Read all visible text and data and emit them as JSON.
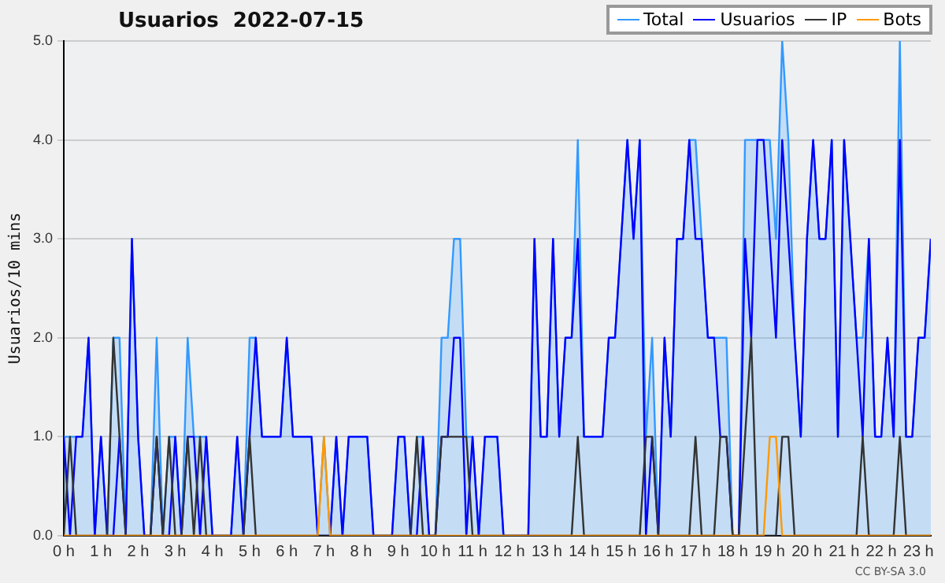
{
  "chart_data": {
    "type": "line",
    "title": "Usuarios  2022-07-15",
    "ylabel": "Usuarios/10 mins",
    "x": [
      "2022-07-15T00:00",
      "2022-07-15T00:10",
      "2022-07-15T00:20",
      "2022-07-15T00:30",
      "2022-07-15T00:40",
      "2022-07-15T00:50",
      "2022-07-15T01:00",
      "2022-07-15T01:10",
      "2022-07-15T01:20",
      "2022-07-15T01:30",
      "2022-07-15T01:40",
      "2022-07-15T01:50",
      "2022-07-15T02:00",
      "2022-07-15T02:10",
      "2022-07-15T02:20",
      "2022-07-15T02:30",
      "2022-07-15T02:40",
      "2022-07-15T02:50",
      "2022-07-15T03:00",
      "2022-07-15T03:10",
      "2022-07-15T03:20",
      "2022-07-15T03:30",
      "2022-07-15T03:40",
      "2022-07-15T03:50",
      "2022-07-15T04:00",
      "2022-07-15T04:10",
      "2022-07-15T04:20",
      "2022-07-15T04:30",
      "2022-07-15T04:40",
      "2022-07-15T04:50",
      "2022-07-15T05:00",
      "2022-07-15T05:10",
      "2022-07-15T05:20",
      "2022-07-15T05:30",
      "2022-07-15T05:40",
      "2022-07-15T05:50",
      "2022-07-15T06:00",
      "2022-07-15T06:10",
      "2022-07-15T06:20",
      "2022-07-15T06:30",
      "2022-07-15T06:40",
      "2022-07-15T06:50",
      "2022-07-15T07:00",
      "2022-07-15T07:10",
      "2022-07-15T07:20",
      "2022-07-15T07:30",
      "2022-07-15T07:40",
      "2022-07-15T07:50",
      "2022-07-15T08:00",
      "2022-07-15T08:10",
      "2022-07-15T08:20",
      "2022-07-15T08:30",
      "2022-07-15T08:40",
      "2022-07-15T08:50",
      "2022-07-15T09:00",
      "2022-07-15T09:10",
      "2022-07-15T09:20",
      "2022-07-15T09:30",
      "2022-07-15T09:40",
      "2022-07-15T09:50",
      "2022-07-15T10:00",
      "2022-07-15T10:10",
      "2022-07-15T10:20",
      "2022-07-15T10:30",
      "2022-07-15T10:40",
      "2022-07-15T10:50",
      "2022-07-15T11:00",
      "2022-07-15T11:10",
      "2022-07-15T11:20",
      "2022-07-15T11:30",
      "2022-07-15T11:40",
      "2022-07-15T11:50",
      "2022-07-15T12:00",
      "2022-07-15T12:10",
      "2022-07-15T12:20",
      "2022-07-15T12:30",
      "2022-07-15T12:40",
      "2022-07-15T12:50",
      "2022-07-15T13:00",
      "2022-07-15T13:10",
      "2022-07-15T13:20",
      "2022-07-15T13:30",
      "2022-07-15T13:40",
      "2022-07-15T13:50",
      "2022-07-15T14:00",
      "2022-07-15T14:10",
      "2022-07-15T14:20",
      "2022-07-15T14:30",
      "2022-07-15T14:40",
      "2022-07-15T14:50",
      "2022-07-15T15:00",
      "2022-07-15T15:10",
      "2022-07-15T15:20",
      "2022-07-15T15:30",
      "2022-07-15T15:40",
      "2022-07-15T15:50",
      "2022-07-15T16:00",
      "2022-07-15T16:10",
      "2022-07-15T16:20",
      "2022-07-15T16:30",
      "2022-07-15T16:40",
      "2022-07-15T16:50",
      "2022-07-15T17:00",
      "2022-07-15T17:10",
      "2022-07-15T17:20",
      "2022-07-15T17:30",
      "2022-07-15T17:40",
      "2022-07-15T17:50",
      "2022-07-15T18:00",
      "2022-07-15T18:10",
      "2022-07-15T18:20",
      "2022-07-15T18:30",
      "2022-07-15T18:40",
      "2022-07-15T18:50",
      "2022-07-15T19:00",
      "2022-07-15T19:10",
      "2022-07-15T19:20",
      "2022-07-15T19:30",
      "2022-07-15T19:40",
      "2022-07-15T19:50",
      "2022-07-15T20:00",
      "2022-07-15T20:10",
      "2022-07-15T20:20",
      "2022-07-15T20:30",
      "2022-07-15T20:40",
      "2022-07-15T20:50",
      "2022-07-15T21:00",
      "2022-07-15T21:10",
      "2022-07-15T21:20",
      "2022-07-15T21:30",
      "2022-07-15T21:40",
      "2022-07-15T21:50",
      "2022-07-15T22:00",
      "2022-07-15T22:10",
      "2022-07-15T22:20",
      "2022-07-15T22:30",
      "2022-07-15T22:40",
      "2022-07-15T22:50",
      "2022-07-15T23:00",
      "2022-07-15T23:10",
      "2022-07-15T23:20"
    ],
    "series": [
      {
        "name": "Total",
        "type": "area",
        "color": "#3399ff",
        "values": [
          1,
          1,
          1,
          1,
          2,
          0,
          1,
          0,
          2,
          2,
          0,
          3,
          1,
          0,
          0,
          2,
          0,
          1,
          1,
          0,
          2,
          1,
          1,
          1,
          0,
          0,
          0,
          0,
          1,
          0,
          2,
          2,
          1,
          1,
          1,
          1,
          2,
          1,
          1,
          1,
          1,
          0,
          1,
          0,
          1,
          0,
          1,
          1,
          1,
          1,
          0,
          0,
          0,
          0,
          1,
          1,
          0,
          1,
          1,
          0,
          0,
          2,
          2,
          3,
          3,
          1,
          1,
          0,
          1,
          1,
          1,
          0,
          0,
          0,
          0,
          0,
          3,
          1,
          1,
          3,
          1,
          2,
          2,
          4,
          1,
          1,
          1,
          1,
          2,
          2,
          3,
          4,
          3,
          4,
          1,
          2,
          0,
          2,
          1,
          3,
          3,
          4,
          4,
          3,
          2,
          2,
          2,
          2,
          0,
          0,
          4,
          4,
          4,
          4,
          4,
          3,
          5,
          4,
          2,
          1,
          3,
          4,
          3,
          3,
          4,
          1,
          4,
          3,
          2,
          2,
          3,
          1,
          1,
          2,
          1,
          5,
          1,
          1,
          2,
          2,
          3
        ]
      },
      {
        "name": "Usuarios",
        "type": "line",
        "color": "#0000ff",
        "values": [
          1,
          0,
          1,
          1,
          2,
          0,
          1,
          0,
          0,
          1,
          0,
          3,
          1,
          0,
          0,
          1,
          0,
          0,
          1,
          0,
          1,
          1,
          0,
          1,
          0,
          0,
          0,
          0,
          1,
          0,
          1,
          2,
          1,
          1,
          1,
          1,
          2,
          1,
          1,
          1,
          1,
          0,
          0,
          0,
          1,
          0,
          1,
          1,
          1,
          1,
          0,
          0,
          0,
          0,
          1,
          1,
          0,
          0,
          1,
          0,
          0,
          1,
          1,
          2,
          2,
          0,
          1,
          0,
          1,
          1,
          1,
          0,
          0,
          0,
          0,
          0,
          3,
          1,
          1,
          3,
          1,
          2,
          2,
          3,
          1,
          1,
          1,
          1,
          2,
          2,
          3,
          4,
          3,
          4,
          0,
          1,
          0,
          2,
          1,
          3,
          3,
          4,
          3,
          3,
          2,
          2,
          1,
          1,
          0,
          0,
          3,
          2,
          4,
          4,
          3,
          2,
          4,
          3,
          2,
          1,
          3,
          4,
          3,
          3,
          4,
          1,
          4,
          3,
          2,
          1,
          3,
          1,
          1,
          2,
          1,
          4,
          1,
          1,
          2,
          2,
          3
        ]
      },
      {
        "name": "IP",
        "type": "line",
        "color": "#333333",
        "values": [
          0,
          1,
          0,
          0,
          0,
          0,
          0,
          0,
          2,
          1,
          0,
          0,
          0,
          0,
          0,
          1,
          0,
          1,
          0,
          0,
          1,
          0,
          1,
          0,
          0,
          0,
          0,
          0,
          0,
          0,
          1,
          0,
          0,
          0,
          0,
          0,
          0,
          0,
          0,
          0,
          0,
          0,
          0,
          0,
          0,
          0,
          0,
          0,
          0,
          0,
          0,
          0,
          0,
          0,
          0,
          0,
          0,
          1,
          0,
          0,
          0,
          1,
          1,
          1,
          1,
          1,
          0,
          0,
          0,
          0,
          0,
          0,
          0,
          0,
          0,
          0,
          0,
          0,
          0,
          0,
          0,
          0,
          0,
          1,
          0,
          0,
          0,
          0,
          0,
          0,
          0,
          0,
          0,
          0,
          1,
          1,
          0,
          0,
          0,
          0,
          0,
          0,
          1,
          0,
          0,
          0,
          1,
          1,
          0,
          0,
          1,
          2,
          0,
          0,
          0,
          0,
          1,
          1,
          0,
          0,
          0,
          0,
          0,
          0,
          0,
          0,
          0,
          0,
          0,
          1,
          0,
          0,
          0,
          0,
          0,
          1,
          0,
          0,
          0,
          0,
          0
        ]
      },
      {
        "name": "Bots",
        "type": "line",
        "color": "#ff9900",
        "values": [
          0,
          0,
          0,
          0,
          0,
          0,
          0,
          0,
          0,
          0,
          0,
          0,
          0,
          0,
          0,
          0,
          0,
          0,
          0,
          0,
          0,
          0,
          0,
          0,
          0,
          0,
          0,
          0,
          0,
          0,
          0,
          0,
          0,
          0,
          0,
          0,
          0,
          0,
          0,
          0,
          0,
          0,
          1,
          0,
          0,
          0,
          0,
          0,
          0,
          0,
          0,
          0,
          0,
          0,
          0,
          0,
          0,
          0,
          0,
          0,
          0,
          0,
          0,
          0,
          0,
          0,
          0,
          0,
          0,
          0,
          0,
          0,
          0,
          0,
          0,
          0,
          0,
          0,
          0,
          0,
          0,
          0,
          0,
          0,
          0,
          0,
          0,
          0,
          0,
          0,
          0,
          0,
          0,
          0,
          0,
          0,
          0,
          0,
          0,
          0,
          0,
          0,
          0,
          0,
          0,
          0,
          0,
          0,
          0,
          0,
          0,
          0,
          0,
          0,
          1,
          1,
          0,
          0,
          0,
          0,
          0,
          0,
          0,
          0,
          0,
          0,
          0,
          0,
          0,
          0,
          0,
          0,
          0,
          0,
          0,
          0,
          0,
          0,
          0,
          0,
          0
        ]
      }
    ],
    "xlim": [
      "2022-07-15T00:00",
      "2022-07-15T23:20"
    ],
    "xticks": [
      {
        "value": "2022-07-15T00:00",
        "label": "0 h"
      },
      {
        "value": "2022-07-15T01:00",
        "label": "1 h"
      },
      {
        "value": "2022-07-15T02:00",
        "label": "2 h"
      },
      {
        "value": "2022-07-15T03:00",
        "label": "3 h"
      },
      {
        "value": "2022-07-15T04:00",
        "label": "4 h"
      },
      {
        "value": "2022-07-15T05:00",
        "label": "5 h"
      },
      {
        "value": "2022-07-15T06:00",
        "label": "6 h"
      },
      {
        "value": "2022-07-15T07:00",
        "label": "7 h"
      },
      {
        "value": "2022-07-15T08:00",
        "label": "8 h"
      },
      {
        "value": "2022-07-15T09:00",
        "label": "9 h"
      },
      {
        "value": "2022-07-15T10:00",
        "label": "10 h"
      },
      {
        "value": "2022-07-15T11:00",
        "label": "11 h"
      },
      {
        "value": "2022-07-15T12:00",
        "label": "12 h"
      },
      {
        "value": "2022-07-15T13:00",
        "label": "13 h"
      },
      {
        "value": "2022-07-15T14:00",
        "label": "14 h"
      },
      {
        "value": "2022-07-15T15:00",
        "label": "15 h"
      },
      {
        "value": "2022-07-15T16:00",
        "label": "16 h"
      },
      {
        "value": "2022-07-15T17:00",
        "label": "17 h"
      },
      {
        "value": "2022-07-15T18:00",
        "label": "18 h"
      },
      {
        "value": "2022-07-15T19:00",
        "label": "19 h"
      },
      {
        "value": "2022-07-15T20:00",
        "label": "20 h"
      },
      {
        "value": "2022-07-15T21:00",
        "label": "21 h"
      },
      {
        "value": "2022-07-15T22:00",
        "label": "22 h"
      },
      {
        "value": "2022-07-15T23:00",
        "label": "23 h"
      }
    ],
    "ylim": [
      0,
      5
    ],
    "yticks": [
      {
        "value": 0,
        "label": "0.0"
      },
      {
        "value": 1,
        "label": "1.0"
      },
      {
        "value": 2,
        "label": "2.0"
      },
      {
        "value": 3,
        "label": "3.0"
      },
      {
        "value": 4,
        "label": "4.0"
      },
      {
        "value": 5,
        "label": "5.0"
      }
    ],
    "grid": "y",
    "legend": "top right",
    "marker": "none",
    "line_style": "solid",
    "annotations": [
      "CC BY-SA 3.0"
    ]
  }
}
